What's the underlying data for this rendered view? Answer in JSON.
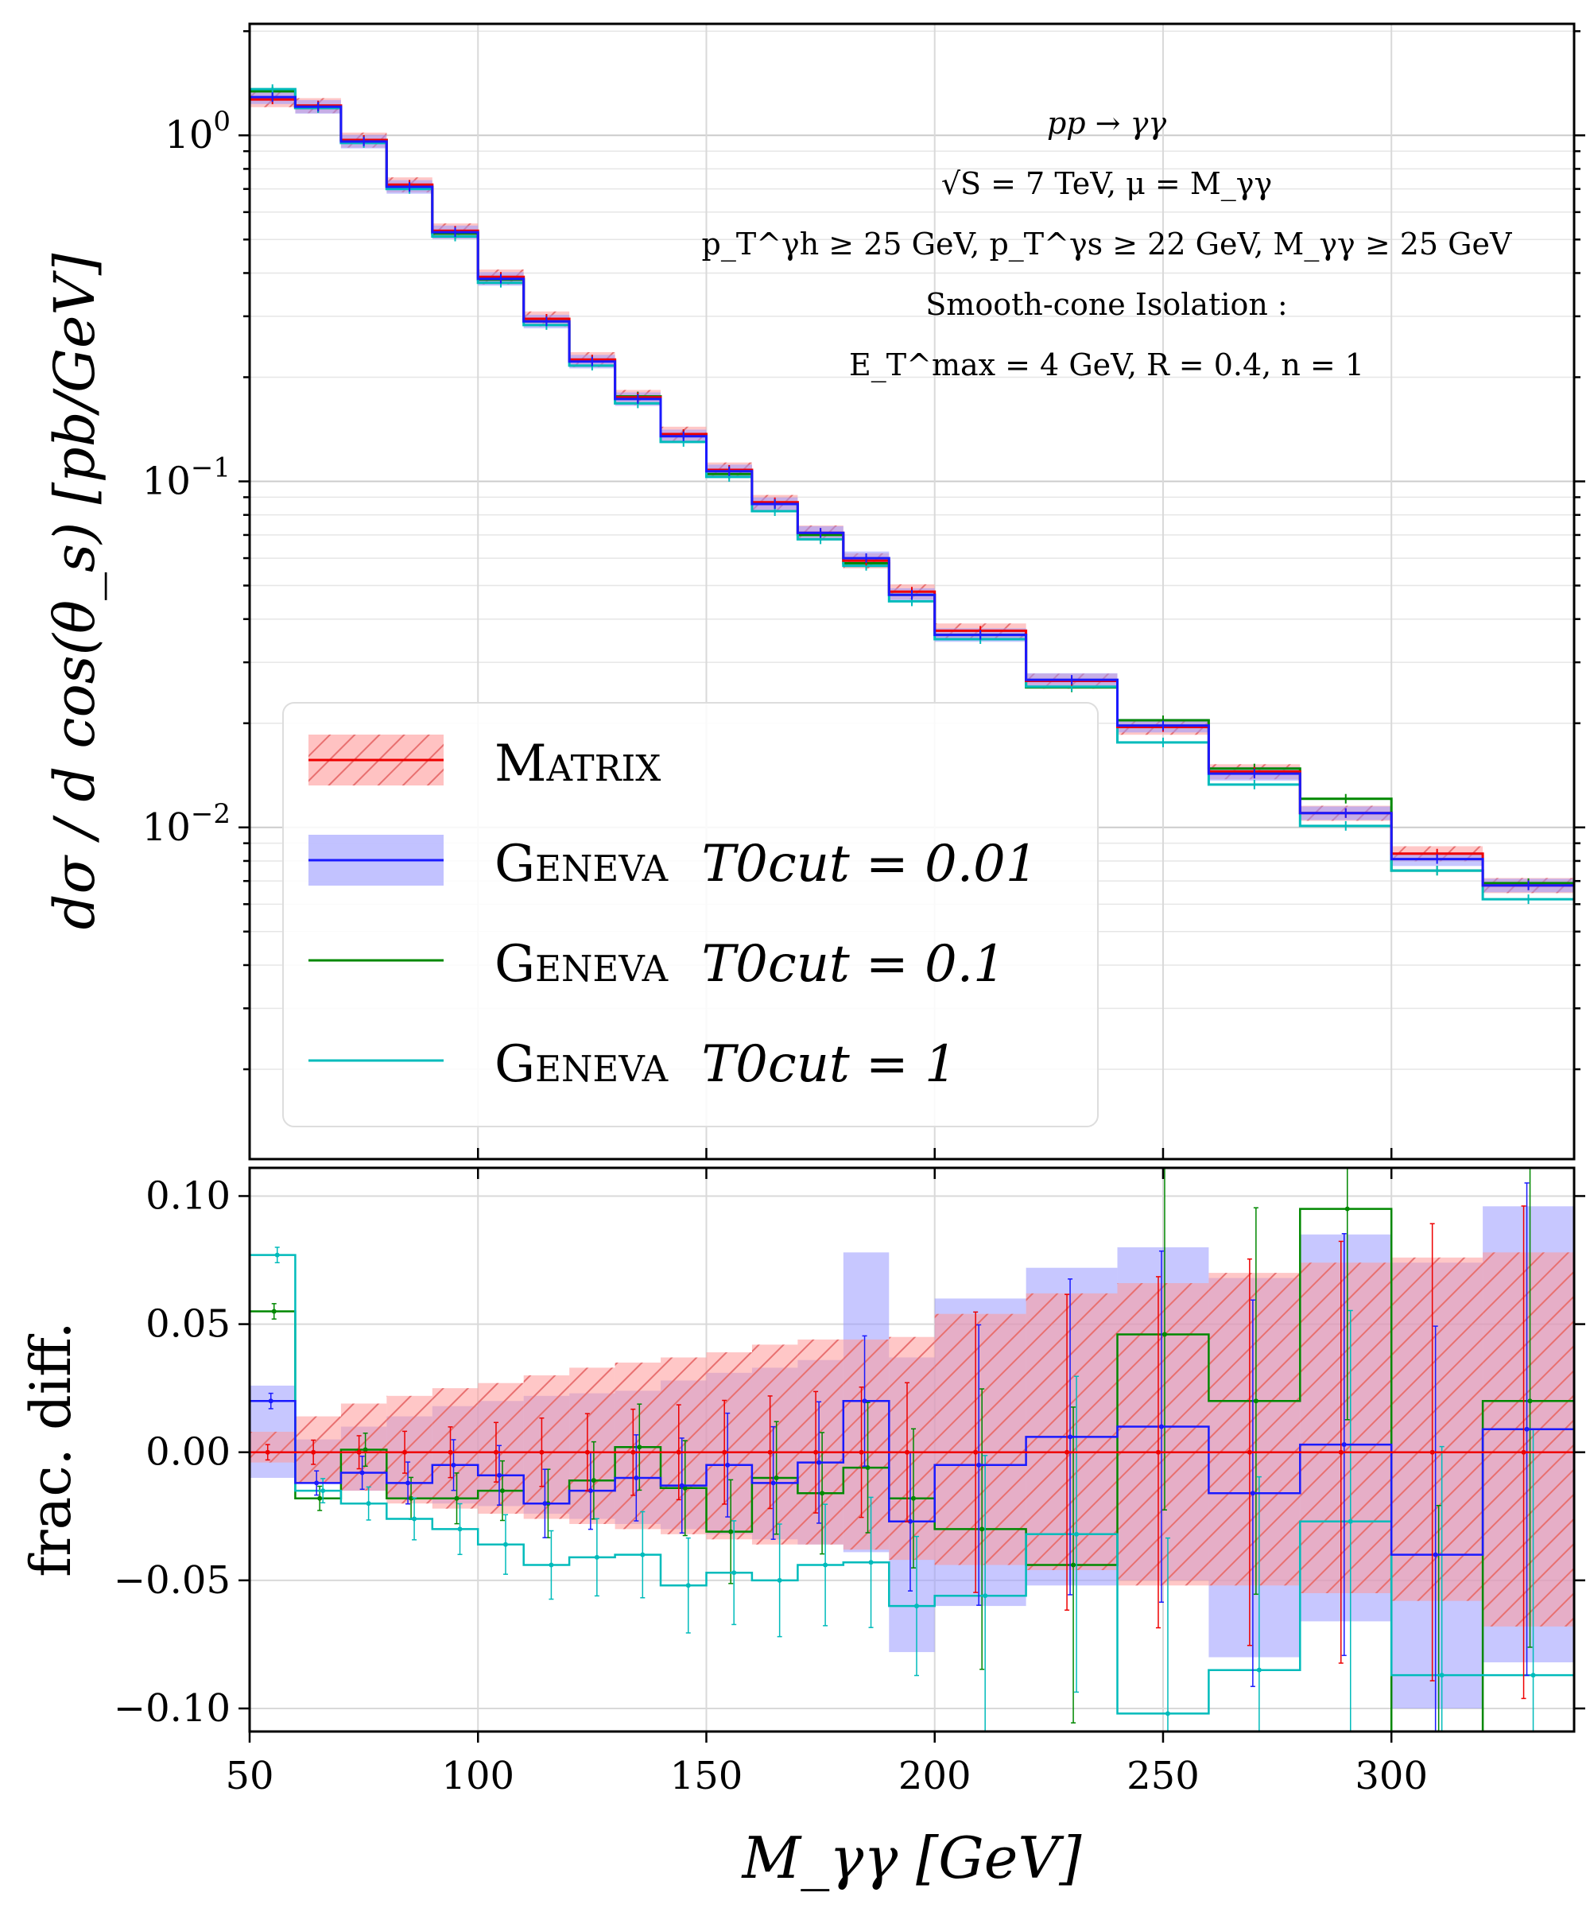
{
  "chart_data": [
    {
      "type": "line",
      "panel": "main",
      "scale": "log",
      "xlabel": "M_γγ   [GeV]",
      "ylabel": "dσ / d cos(θ_s)   [pb/GeV]",
      "xlim": [
        50,
        340
      ],
      "ylim": [
        0.0011,
        2.1
      ],
      "y_ticks": [
        {
          "value": 1,
          "base": "10",
          "exp": "0"
        },
        {
          "value": 0.1,
          "base": "10",
          "exp": "−1"
        },
        {
          "value": 0.01,
          "base": "10",
          "exp": "−2"
        }
      ],
      "bin_edges": [
        50,
        60,
        70,
        80,
        90,
        100,
        110,
        120,
        130,
        140,
        150,
        160,
        170,
        180,
        190,
        200,
        220,
        240,
        260,
        280,
        300,
        320,
        340
      ],
      "annotation_lines": [
        "pp → γγ",
        "√S = 7 TeV, μ = M_γγ",
        "p_T^γh ≥ 25 GeV,  p_T^γs ≥ 22 GeV,  M_γγ ≥ 25 GeV",
        "Smooth-cone Isolation :",
        "E_T^max = 4 GeV,  R = 0.4,  n = 1"
      ],
      "series": [
        {
          "name": "Matrix",
          "color": "#ee0000",
          "band_color": "#ff9999",
          "values": [
            1.27,
            1.22,
            0.97,
            0.72,
            0.53,
            0.39,
            0.295,
            0.225,
            0.175,
            0.137,
            0.108,
            0.087,
            0.071,
            0.059,
            0.048,
            0.037,
            0.0265,
            0.0195,
            0.0145,
            0.011,
            0.0084,
            0.0068
          ]
        },
        {
          "name": "Geneva T0cut = 0.01",
          "color": "#1a1aff",
          "band_color": "#9999ff",
          "values": [
            1.29,
            1.21,
            0.96,
            0.71,
            0.525,
            0.385,
            0.29,
            0.222,
            0.173,
            0.135,
            0.107,
            0.086,
            0.071,
            0.06,
            0.047,
            0.036,
            0.0267,
            0.0197,
            0.0143,
            0.011,
            0.0081,
            0.0068
          ]
        },
        {
          "name": "Geneva T0cut = 0.1",
          "color": "#008800",
          "values": [
            1.34,
            1.2,
            0.97,
            0.71,
            0.52,
            0.383,
            0.29,
            0.224,
            0.176,
            0.137,
            0.105,
            0.086,
            0.07,
            0.058,
            0.047,
            0.036,
            0.0254,
            0.0204,
            0.0148,
            0.0121,
            0.0075,
            0.0069
          ]
        },
        {
          "name": "Geneva T0cut = 1",
          "color": "#00bbbb",
          "values": [
            1.36,
            1.2,
            0.95,
            0.7,
            0.51,
            0.375,
            0.283,
            0.216,
            0.168,
            0.13,
            0.103,
            0.082,
            0.068,
            0.057,
            0.045,
            0.035,
            0.0255,
            0.0176,
            0.0133,
            0.0101,
            0.0075,
            0.0062
          ]
        }
      ],
      "legend": {
        "placement": "lower-left",
        "entries": [
          {
            "prefix": "Matrix",
            "rest": ""
          },
          {
            "prefix": "Geneva",
            "rest": "T0cut = 0.01"
          },
          {
            "prefix": "Geneva",
            "rest": "T0cut = 0.1"
          },
          {
            "prefix": "Geneva",
            "rest": "T0cut = 1"
          }
        ]
      }
    },
    {
      "type": "line",
      "panel": "ratio",
      "xlabel": "M_γγ   [GeV]",
      "ylabel": "frac. diff.",
      "xlim": [
        50,
        340
      ],
      "ylim": [
        -0.109,
        0.111
      ],
      "x_ticks": [
        "50",
        "100",
        "150",
        "200",
        "250",
        "300"
      ],
      "y_ticks": [
        {
          "value": 0.1,
          "label": "0.10"
        },
        {
          "value": 0.05,
          "label": "0.05"
        },
        {
          "value": 0.0,
          "label": "0.00"
        },
        {
          "value": -0.05,
          "label": "−0.05"
        },
        {
          "value": -0.1,
          "label": "−0.10"
        }
      ],
      "bin_edges": [
        50,
        60,
        70,
        80,
        90,
        100,
        110,
        120,
        130,
        140,
        150,
        160,
        170,
        180,
        190,
        200,
        220,
        240,
        260,
        280,
        300,
        320,
        340
      ],
      "bands": [
        {
          "name": "Matrix band",
          "color": "#ff9999",
          "hatched": true,
          "lo": [
            -0.004,
            -0.012,
            -0.015,
            -0.02,
            -0.022,
            -0.024,
            -0.026,
            -0.028,
            -0.03,
            -0.032,
            -0.034,
            -0.036,
            -0.036,
            -0.038,
            -0.042,
            -0.044,
            -0.046,
            -0.052,
            -0.052,
            -0.055,
            -0.058,
            -0.068
          ],
          "hi": [
            0.008,
            0.014,
            0.019,
            0.022,
            0.025,
            0.027,
            0.03,
            0.033,
            0.035,
            0.037,
            0.039,
            0.042,
            0.044,
            0.044,
            0.045,
            0.054,
            0.062,
            0.066,
            0.07,
            0.074,
            0.076,
            0.078
          ]
        },
        {
          "name": "Geneva band",
          "color": "#9999ff",
          "hatched": false,
          "lo": [
            -0.01,
            -0.012,
            -0.015,
            -0.018,
            -0.02,
            -0.021,
            -0.024,
            -0.026,
            -0.028,
            -0.03,
            -0.032,
            -0.034,
            -0.036,
            -0.039,
            -0.078,
            -0.06,
            -0.052,
            -0.05,
            -0.08,
            -0.066,
            -0.1,
            -0.082
          ],
          "hi": [
            0.026,
            0.005,
            0.01,
            0.014,
            0.018,
            0.02,
            0.022,
            0.023,
            0.024,
            0.028,
            0.031,
            0.033,
            0.036,
            0.078,
            0.037,
            0.06,
            0.072,
            0.08,
            0.068,
            0.085,
            0.074,
            0.096
          ]
        }
      ],
      "series": [
        {
          "name": "Matrix",
          "color": "#ee0000",
          "values": [
            0,
            0,
            0,
            0,
            0,
            0,
            0,
            0,
            0,
            0,
            0,
            0,
            0,
            0,
            0,
            0,
            0,
            0,
            0,
            0,
            0,
            0
          ]
        },
        {
          "name": "Geneva T0cut = 0.01",
          "color": "#1a1aff",
          "values": [
            0.02,
            -0.012,
            -0.008,
            -0.012,
            -0.005,
            -0.009,
            -0.02,
            -0.015,
            -0.01,
            -0.013,
            -0.005,
            -0.012,
            -0.004,
            0.02,
            -0.027,
            -0.005,
            0.006,
            0.01,
            -0.016,
            0.003,
            -0.04,
            0.009
          ]
        },
        {
          "name": "Geneva T0cut = 0.1",
          "color": "#008800",
          "values": [
            0.055,
            -0.018,
            0.001,
            -0.018,
            -0.018,
            -0.015,
            -0.02,
            -0.011,
            0.002,
            -0.014,
            -0.031,
            -0.01,
            -0.016,
            -0.006,
            -0.018,
            -0.03,
            -0.044,
            0.046,
            0.02,
            0.095,
            -0.11,
            0.02
          ]
        },
        {
          "name": "Geneva T0cut = 1",
          "color": "#00bbbb",
          "values": [
            0.077,
            -0.015,
            -0.02,
            -0.026,
            -0.03,
            -0.036,
            -0.044,
            -0.041,
            -0.04,
            -0.052,
            -0.047,
            -0.05,
            -0.044,
            -0.043,
            -0.06,
            -0.056,
            -0.032,
            -0.102,
            -0.085,
            -0.027,
            -0.087,
            -0.087
          ]
        }
      ]
    }
  ]
}
